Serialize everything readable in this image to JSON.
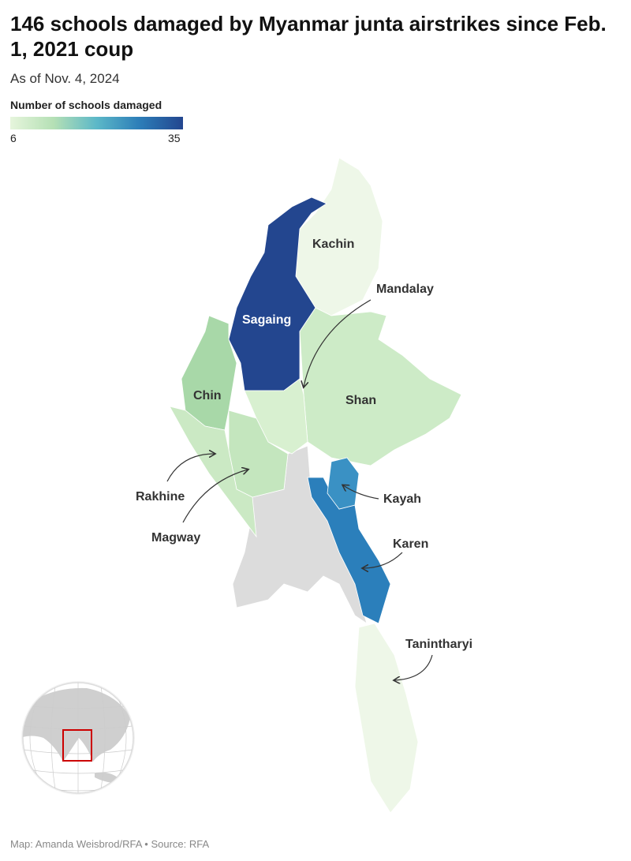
{
  "title": "146 schools damaged by Myanmar junta airstrikes since Feb. 1, 2021 coup",
  "subtitle": "As of Nov. 4, 2024",
  "legend": {
    "title": "Number of schools damaged",
    "min": "6",
    "max": "35",
    "colors": [
      "#e6f5dc",
      "#b5e0b5",
      "#5cb8c8",
      "#2c7db8",
      "#23468f"
    ]
  },
  "regions": {
    "kachin": {
      "label": "Kachin",
      "color": "#eef7e8"
    },
    "sagaing": {
      "label": "Sagaing",
      "color": "#23468f"
    },
    "chin": {
      "label": "Chin",
      "color": "#a8d8a8"
    },
    "shan": {
      "label": "Shan",
      "color": "#cdebc7"
    },
    "mandalay": {
      "label": "Mandalay",
      "color": "#d8f0d0"
    },
    "magway": {
      "label": "Magway",
      "color": "#c4e6be"
    },
    "rakhine": {
      "label": "Rakhine",
      "color": "#cbe9c4"
    },
    "kayah": {
      "label": "Kayah",
      "color": "#3a91c4"
    },
    "karen": {
      "label": "Karen",
      "color": "#2b7fbb"
    },
    "tanintharyi": {
      "label": "Tanintharyi",
      "color": "#eef7e8"
    },
    "no_data_color": "#dcdcdc"
  },
  "locator": {
    "highlight_color": "#cc0000"
  },
  "footer": "Map: Amanda Weisbrod/RFA • Source: RFA"
}
